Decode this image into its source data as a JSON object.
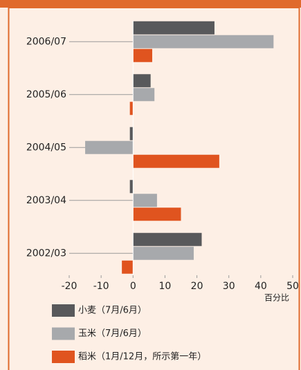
{
  "chart_data": {
    "type": "bar",
    "orientation": "horizontal",
    "categories": [
      "2006/07",
      "2005/06",
      "2004/05",
      "2003/04",
      "2002/03"
    ],
    "series": [
      {
        "name": "小麦（7月/6月）",
        "color": "#58595b",
        "values": [
          25.5,
          5.5,
          -1,
          -1,
          21.5
        ]
      },
      {
        "name": "玉米（7月/6月）",
        "color": "#a7a9ac",
        "values": [
          44,
          6.7,
          -15,
          7.5,
          19
        ]
      },
      {
        "name": "稻米（1月/12月，所示第一年）",
        "color": "#e0541f",
        "values": [
          6,
          -1,
          27,
          15,
          -3.5
        ]
      }
    ],
    "xlabel": "百分比",
    "xlim": [
      -20,
      50
    ],
    "xticks": [
      -20,
      -10,
      0,
      10,
      20,
      30,
      40,
      50
    ]
  }
}
